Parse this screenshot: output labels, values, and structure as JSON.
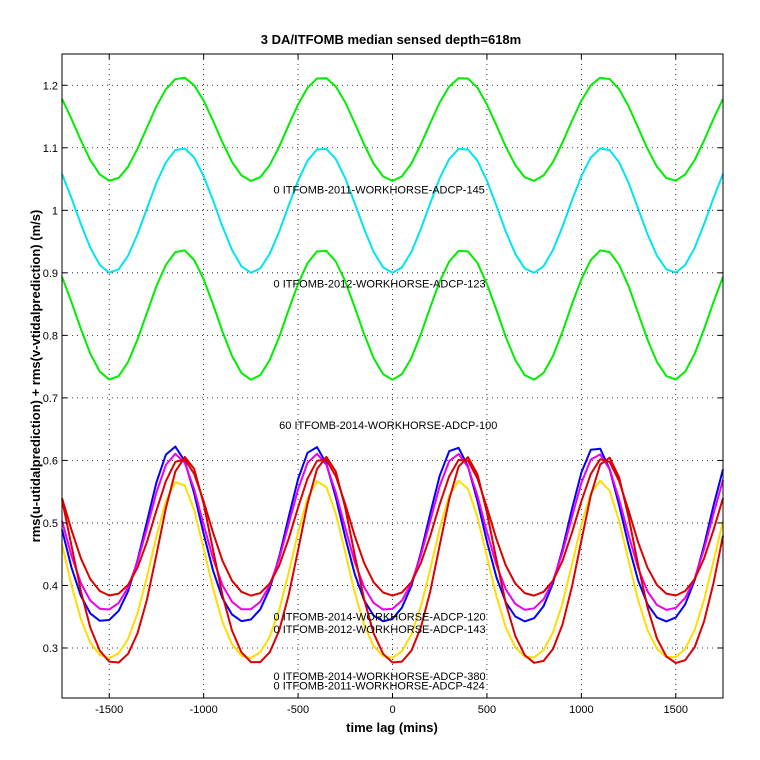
{
  "chart_data": {
    "type": "line",
    "title": "3 DA/ITFOMB median sensed depth=618m",
    "xlabel": "time lag (mins)",
    "ylabel": "rms(u-utidalprediction) + rms(v-vtidalprediction) (m/s)",
    "xlim": [
      -1750,
      1750
    ],
    "ylim": [
      0.22,
      1.25
    ],
    "xticks": [
      -1500,
      -1000,
      -500,
      0,
      500,
      1000,
      1500
    ],
    "xtick_labels": [
      "-1500",
      "-1000",
      "-500",
      "0",
      "500",
      "1000",
      "1500"
    ],
    "yticks": [
      0.3,
      0.4,
      0.5,
      0.6,
      0.7,
      0.8,
      0.9,
      1.0,
      1.1,
      1.2
    ],
    "ytick_labels": [
      "0.3",
      "0.4",
      "0.5",
      "0.6",
      "0.7",
      "0.8",
      "0.9",
      "1",
      "1.1",
      "1.2"
    ],
    "grid": true,
    "period_mins": 745,
    "series": [
      {
        "color": "#00ee00",
        "mean": 1.13,
        "amp": 0.083,
        "phase_mins": 0,
        "sharp": 0
      },
      {
        "color": "#00e5ee",
        "mean": 1.0,
        "amp": 0.1,
        "phase_mins": 0,
        "sharp": 0
      },
      {
        "color": "#00ee00",
        "mean": 0.833,
        "amp": 0.104,
        "phase_mins": 0,
        "sharp": 0
      },
      {
        "color": "#0000ff",
        "mean": 0.465,
        "amp": 0.14,
        "phase_mins": -40,
        "sharp": 0.25
      },
      {
        "color": "#ee00ee",
        "mean": 0.47,
        "amp": 0.125,
        "phase_mins": -30,
        "sharp": 0.25
      },
      {
        "color": "#dd0000",
        "mean": 0.48,
        "amp": 0.11,
        "phase_mins": 0,
        "sharp": 0.25
      },
      {
        "color": "#ffdd00",
        "mean": 0.408,
        "amp": 0.142,
        "phase_mins": -15,
        "sharp": 0.25
      },
      {
        "color": "#dd0000",
        "mean": 0.42,
        "amp": 0.165,
        "phase_mins": 20,
        "sharp": 0.25
      }
    ],
    "annotations": [
      {
        "text": "0 ITFOMB-2011-WORKHORSE-ADCP-145",
        "x": -630,
        "y": 1.033
      },
      {
        "text": "0 ITFOMB-2012-WORKHORSE-ADCP-123",
        "x": -630,
        "y": 0.883
      },
      {
        "text": "60 ITFOMB-2014-WORKHORSE-ADCP-100",
        "x": -600,
        "y": 0.657
      },
      {
        "text": "0 ITFOMB-2014-WORKHORSE-ADCP-120",
        "x": -630,
        "y": 0.35
      },
      {
        "text": "0 ITFOMB-2012-WORKHORSE-ADCP-143",
        "x": -630,
        "y": 0.33
      },
      {
        "text": "0 ITFOMB-2014-WORKHORSE-ADCP-380",
        "x": -630,
        "y": 0.255
      },
      {
        "text": "0 ITFOMB-2011-WORKHORSE-ADCP-424",
        "x": -630,
        "y": 0.24
      }
    ]
  }
}
